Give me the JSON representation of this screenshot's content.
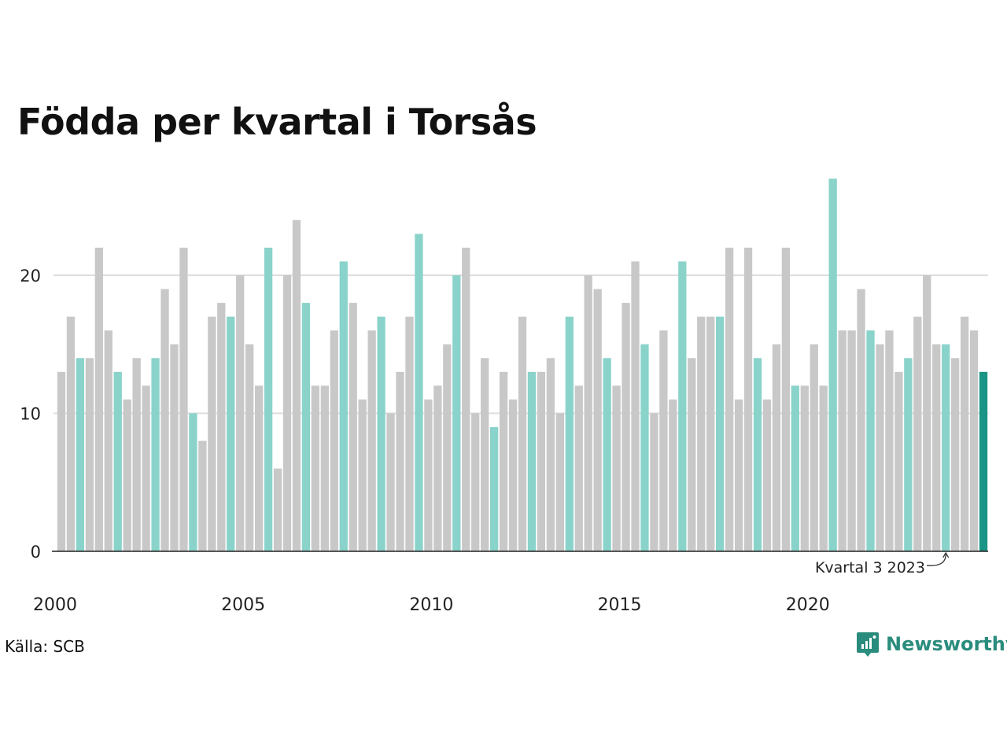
{
  "chart_data": {
    "type": "bar",
    "title": "Födda per kvartal i Torsås",
    "xlabel": "",
    "ylabel": "",
    "ylim": [
      0,
      27
    ],
    "yticks": [
      0,
      10,
      20
    ],
    "xtick_labels": [
      "2000",
      "2005",
      "2010",
      "2015",
      "2020"
    ],
    "grid": true,
    "start": {
      "year": 2000,
      "quarter": 1
    },
    "values": [
      13,
      17,
      14,
      14,
      22,
      16,
      13,
      11,
      14,
      12,
      14,
      19,
      15,
      22,
      10,
      8,
      17,
      18,
      17,
      20,
      15,
      12,
      22,
      6,
      20,
      24,
      18,
      12,
      12,
      16,
      21,
      18,
      11,
      16,
      17,
      10,
      13,
      17,
      23,
      11,
      12,
      15,
      20,
      22,
      10,
      14,
      9,
      13,
      11,
      17,
      13,
      13,
      14,
      10,
      17,
      12,
      20,
      19,
      14,
      12,
      18,
      21,
      15,
      10,
      16,
      11,
      21,
      14,
      17,
      17,
      17,
      22,
      11,
      22,
      14,
      11,
      15,
      22,
      12,
      12,
      15,
      12,
      27,
      16,
      16,
      19,
      16,
      15,
      16,
      13,
      14,
      17,
      20,
      15,
      15,
      14,
      17,
      16,
      13
    ],
    "colors": {
      "default": "#c8c8c8",
      "quarter3": "#8ad3cb",
      "latest": "#1a9484",
      "grid": "#dddddd",
      "axis": "#222222"
    },
    "annotation": {
      "label": "Kvartal 3 2023",
      "target_index": 94
    }
  },
  "source": "Källa: SCB",
  "brand": {
    "name": "Newsworthy",
    "color": "#2a8c7c",
    "icon": "newsworthy-logo-icon"
  }
}
